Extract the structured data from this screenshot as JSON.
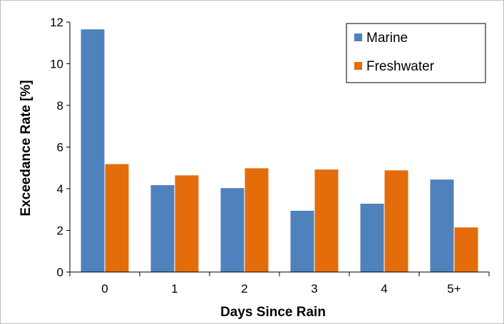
{
  "chart_data": {
    "type": "bar",
    "title": "",
    "xlabel": "Days Since Rain",
    "ylabel": "Exceedance Rate [%]",
    "categories": [
      "0",
      "1",
      "2",
      "3",
      "4",
      "5+"
    ],
    "ylim": [
      0,
      12
    ],
    "yticks": [
      0,
      2,
      4,
      6,
      8,
      10,
      12
    ],
    "grid": false,
    "legend_position": "top-right",
    "series": [
      {
        "name": "Marine",
        "color": "#4f81bd",
        "values": [
          11.65,
          4.17,
          4.03,
          2.94,
          3.28,
          4.44
        ]
      },
      {
        "name": "Freshwater",
        "color": "#e46c0a",
        "values": [
          5.18,
          4.64,
          4.98,
          4.92,
          4.88,
          2.14
        ]
      }
    ]
  }
}
